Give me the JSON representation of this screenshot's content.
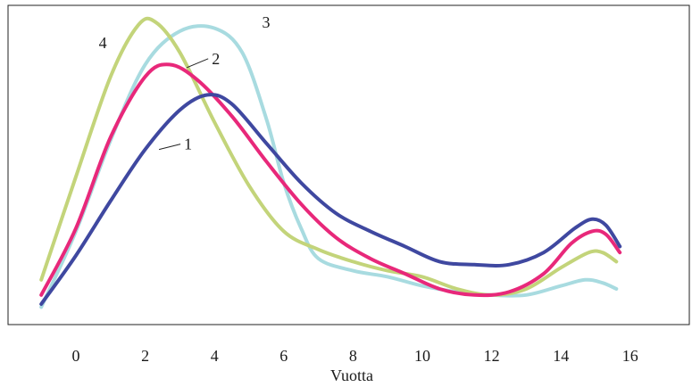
{
  "chart_data": {
    "type": "line",
    "title": "",
    "xlabel": "Vuotta",
    "ylabel": "",
    "xlim": [
      -2,
      17.6
    ],
    "ylim": [
      0,
      1
    ],
    "xticks": [
      0,
      2,
      4,
      6,
      8,
      10,
      12,
      14,
      16
    ],
    "xtick_labels": [
      "0",
      "2",
      "4",
      "6",
      "8",
      "10",
      "12",
      "14",
      "16"
    ],
    "grid": false,
    "legend": "none",
    "series": [
      {
        "label": "1",
        "color": "#3f48a0",
        "points": [
          [
            -1,
            0.05
          ],
          [
            0,
            0.21
          ],
          [
            1,
            0.39
          ],
          [
            2,
            0.56
          ],
          [
            3,
            0.69
          ],
          [
            3.8,
            0.74
          ],
          [
            4.5,
            0.71
          ],
          [
            5.5,
            0.58
          ],
          [
            6.5,
            0.45
          ],
          [
            7.5,
            0.35
          ],
          [
            8.5,
            0.29
          ],
          [
            9.5,
            0.24
          ],
          [
            10.5,
            0.19
          ],
          [
            11.5,
            0.18
          ],
          [
            12.5,
            0.18
          ],
          [
            13.5,
            0.22
          ],
          [
            14.4,
            0.3
          ],
          [
            14.9,
            0.33
          ],
          [
            15.3,
            0.31
          ],
          [
            15.7,
            0.24
          ]
        ]
      },
      {
        "label": "2",
        "color": "#e8287a",
        "points": [
          [
            -1,
            0.08
          ],
          [
            0,
            0.3
          ],
          [
            1,
            0.6
          ],
          [
            2,
            0.8
          ],
          [
            2.7,
            0.84
          ],
          [
            3.5,
            0.79
          ],
          [
            4.5,
            0.67
          ],
          [
            5.5,
            0.52
          ],
          [
            6.5,
            0.38
          ],
          [
            7.5,
            0.27
          ],
          [
            8.5,
            0.2
          ],
          [
            9.5,
            0.15
          ],
          [
            10.5,
            0.1
          ],
          [
            11.5,
            0.08
          ],
          [
            12.5,
            0.09
          ],
          [
            13.5,
            0.15
          ],
          [
            14.3,
            0.25
          ],
          [
            14.9,
            0.29
          ],
          [
            15.3,
            0.28
          ],
          [
            15.7,
            0.22
          ]
        ]
      },
      {
        "label": "3",
        "color": "#a8dbe0",
        "points": [
          [
            -1,
            0.04
          ],
          [
            0,
            0.29
          ],
          [
            1,
            0.59
          ],
          [
            2,
            0.84
          ],
          [
            3,
            0.95
          ],
          [
            4,
            0.96
          ],
          [
            4.8,
            0.88
          ],
          [
            5.5,
            0.66
          ],
          [
            6,
            0.45
          ],
          [
            6.5,
            0.3
          ],
          [
            7,
            0.2
          ],
          [
            8,
            0.16
          ],
          [
            9,
            0.14
          ],
          [
            10,
            0.11
          ],
          [
            11,
            0.09
          ],
          [
            12,
            0.08
          ],
          [
            13,
            0.08
          ],
          [
            14,
            0.11
          ],
          [
            14.7,
            0.13
          ],
          [
            15.2,
            0.12
          ],
          [
            15.6,
            0.1
          ]
        ]
      },
      {
        "label": "4",
        "color": "#c3d47a",
        "points": [
          [
            -1,
            0.13
          ],
          [
            0,
            0.47
          ],
          [
            1,
            0.8
          ],
          [
            1.8,
            0.97
          ],
          [
            2.3,
            0.98
          ],
          [
            3,
            0.88
          ],
          [
            4,
            0.65
          ],
          [
            5,
            0.44
          ],
          [
            6,
            0.29
          ],
          [
            7,
            0.23
          ],
          [
            8,
            0.19
          ],
          [
            9,
            0.16
          ],
          [
            10,
            0.14
          ],
          [
            11,
            0.1
          ],
          [
            12,
            0.08
          ],
          [
            13,
            0.1
          ],
          [
            14,
            0.17
          ],
          [
            14.8,
            0.22
          ],
          [
            15.2,
            0.22
          ],
          [
            15.6,
            0.19
          ]
        ]
      }
    ],
    "annotations": [
      {
        "text": "1",
        "series": "1",
        "at": [
          2.4,
          0.56
        ]
      },
      {
        "text": "2",
        "series": "2",
        "at": [
          3.2,
          0.83
        ]
      },
      {
        "text": "3",
        "series": "3",
        "at": [
          4.6,
          0.95
        ]
      },
      {
        "text": "4",
        "series": "4",
        "at": [
          1.2,
          0.9
        ]
      }
    ]
  }
}
